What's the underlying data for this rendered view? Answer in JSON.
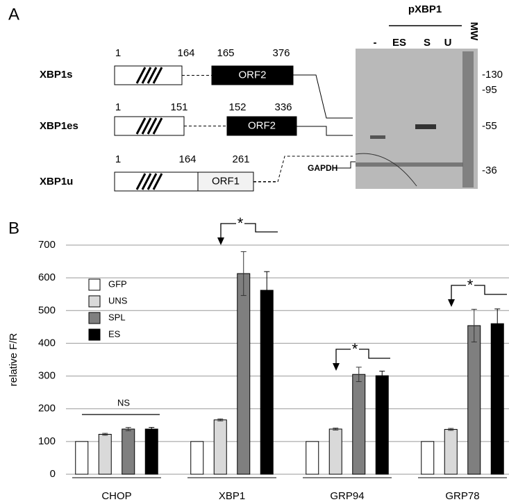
{
  "panel_a": {
    "label": "A",
    "constructs": [
      {
        "name": "XBP1s",
        "positions": [
          1,
          164,
          165,
          376
        ],
        "orf": "ORF2"
      },
      {
        "name": "XBP1es",
        "positions": [
          1,
          151,
          152,
          336
        ],
        "orf": "ORF2"
      },
      {
        "name": "XBP1u",
        "positions": [
          1,
          164,
          261
        ],
        "orf": "ORF1"
      }
    ],
    "gel": {
      "title": "pXBP1",
      "lanes": [
        "-",
        "ES",
        "S",
        "U"
      ],
      "mw_label": "MW",
      "markers": [
        "-130",
        "-95",
        "-55",
        "-36"
      ],
      "loading_control": "GAPDH"
    }
  },
  "chart_data": {
    "type": "bar",
    "panel_label": "B",
    "y_label": "relative F/R",
    "categories": [
      "CHOP",
      "XBP1",
      "GRP94",
      "GRP78"
    ],
    "series": [
      {
        "name": "GFP",
        "color": "#ffffff",
        "values": [
          100,
          100,
          100,
          100
        ]
      },
      {
        "name": "UNS",
        "color": "#d9d9d9",
        "values": [
          122,
          166,
          138,
          137
        ],
        "errors": [
          3,
          3,
          3,
          3
        ]
      },
      {
        "name": "SPL",
        "color": "#7f7f7f",
        "values": [
          138,
          613,
          305,
          454
        ],
        "errors": [
          5,
          67,
          22,
          50
        ]
      },
      {
        "name": "ES",
        "color": "#000000",
        "values": [
          138,
          562,
          301,
          460
        ],
        "errors": [
          5,
          57,
          14,
          45
        ]
      }
    ],
    "ylim": [
      0,
      700
    ],
    "yticks": [
      0,
      100,
      200,
      300,
      400,
      500,
      600,
      700
    ],
    "grid": true,
    "annotations": [
      "NS",
      "*",
      "*",
      "*"
    ]
  }
}
